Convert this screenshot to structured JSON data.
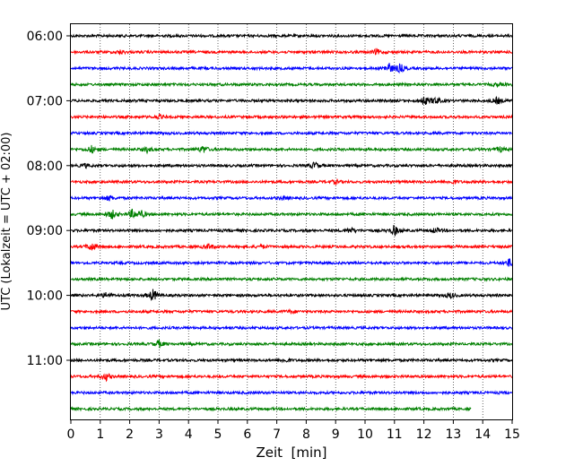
{
  "chart_data": {
    "type": "line",
    "title": "",
    "xlabel": "Zeit  [min]",
    "ylabel": "UTC (Lokalzeit = UTC + 02:00)",
    "xlim": [
      0,
      15
    ],
    "x_ticks": [
      "0",
      "1",
      "2",
      "3",
      "4",
      "5",
      "6",
      "7",
      "8",
      "9",
      "10",
      "11",
      "12",
      "13",
      "14",
      "15"
    ],
    "grid": "vertical dotted",
    "y_tick_labels": [
      "06:00",
      "07:00",
      "08:00",
      "09:00",
      "10:00",
      "11:00"
    ],
    "colors": [
      "#000000",
      "#ff0000",
      "#0000ff",
      "#008000"
    ],
    "series": [
      {
        "start": "06:00",
        "color": "#000000",
        "end_minute": 15,
        "events": []
      },
      {
        "start": "06:15",
        "color": "#ff0000",
        "end_minute": 15,
        "events": [
          {
            "x": 1.7,
            "amp": 2
          },
          {
            "x": 10.4,
            "amp": 3
          }
        ]
      },
      {
        "start": "06:30",
        "color": "#0000ff",
        "end_minute": 15,
        "events": [
          {
            "x": 10.8,
            "amp": 6
          },
          {
            "x": 11.2,
            "amp": 5
          }
        ]
      },
      {
        "start": "06:45",
        "color": "#008000",
        "end_minute": 15,
        "events": [
          {
            "x": 14.5,
            "amp": 2
          }
        ]
      },
      {
        "start": "07:00",
        "color": "#000000",
        "end_minute": 15,
        "events": [
          {
            "x": 12.0,
            "amp": 5
          },
          {
            "x": 12.4,
            "amp": 4
          },
          {
            "x": 14.5,
            "amp": 4
          }
        ]
      },
      {
        "start": "07:15",
        "color": "#ff0000",
        "end_minute": 15,
        "events": [
          {
            "x": 3.0,
            "amp": 2
          }
        ]
      },
      {
        "start": "07:30",
        "color": "#0000ff",
        "end_minute": 15,
        "events": []
      },
      {
        "start": "07:45",
        "color": "#008000",
        "end_minute": 15,
        "events": [
          {
            "x": 0.7,
            "amp": 4
          },
          {
            "x": 2.6,
            "amp": 3
          },
          {
            "x": 4.5,
            "amp": 4
          },
          {
            "x": 14.6,
            "amp": 3
          }
        ]
      },
      {
        "start": "08:00",
        "color": "#000000",
        "end_minute": 15,
        "events": [
          {
            "x": 0.5,
            "amp": 2
          },
          {
            "x": 8.3,
            "amp": 4
          }
        ]
      },
      {
        "start": "08:15",
        "color": "#ff0000",
        "end_minute": 15,
        "events": [
          {
            "x": 9.0,
            "amp": 2
          },
          {
            "x": 13.0,
            "amp": 2
          }
        ]
      },
      {
        "start": "08:30",
        "color": "#0000ff",
        "end_minute": 15,
        "events": [
          {
            "x": 1.3,
            "amp": 3
          },
          {
            "x": 7.2,
            "amp": 2
          }
        ]
      },
      {
        "start": "08:45",
        "color": "#008000",
        "end_minute": 15,
        "events": [
          {
            "x": 1.4,
            "amp": 5
          },
          {
            "x": 2.1,
            "amp": 5
          },
          {
            "x": 2.4,
            "amp": 4
          }
        ]
      },
      {
        "start": "09:00",
        "color": "#000000",
        "end_minute": 15,
        "events": [
          {
            "x": 9.5,
            "amp": 3
          },
          {
            "x": 11.0,
            "amp": 6
          },
          {
            "x": 12.4,
            "amp": 3
          }
        ]
      },
      {
        "start": "09:15",
        "color": "#ff0000",
        "end_minute": 15,
        "events": [
          {
            "x": 0.7,
            "amp": 5
          },
          {
            "x": 4.7,
            "amp": 3
          },
          {
            "x": 6.5,
            "amp": 2
          }
        ]
      },
      {
        "start": "09:30",
        "color": "#0000ff",
        "end_minute": 15,
        "events": [
          {
            "x": 14.9,
            "amp": 4
          }
        ]
      },
      {
        "start": "09:45",
        "color": "#008000",
        "end_minute": 15,
        "events": []
      },
      {
        "start": "10:00",
        "color": "#000000",
        "end_minute": 15,
        "events": [
          {
            "x": 1.2,
            "amp": 3
          },
          {
            "x": 2.8,
            "amp": 7
          },
          {
            "x": 12.9,
            "amp": 3
          }
        ]
      },
      {
        "start": "10:15",
        "color": "#ff0000",
        "end_minute": 15,
        "events": [
          {
            "x": 7.5,
            "amp": 2
          }
        ]
      },
      {
        "start": "10:30",
        "color": "#0000ff",
        "end_minute": 15,
        "events": []
      },
      {
        "start": "10:45",
        "color": "#008000",
        "end_minute": 15,
        "events": [
          {
            "x": 3.0,
            "amp": 4
          }
        ]
      },
      {
        "start": "11:00",
        "color": "#000000",
        "end_minute": 15,
        "events": [
          {
            "x": 7.3,
            "amp": 2
          }
        ]
      },
      {
        "start": "11:15",
        "color": "#ff0000",
        "end_minute": 15,
        "events": [
          {
            "x": 1.2,
            "amp": 4
          }
        ]
      },
      {
        "start": "11:30",
        "color": "#0000ff",
        "end_minute": 15,
        "events": []
      },
      {
        "start": "11:45",
        "color": "#008000",
        "end_minute": 13.6,
        "events": []
      }
    ]
  }
}
